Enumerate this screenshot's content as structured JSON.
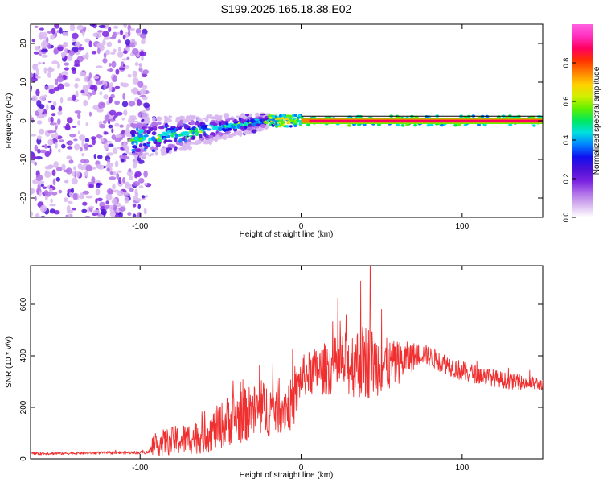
{
  "title": "S199.2025.165.18.38.E02",
  "chart_data": [
    {
      "type": "heatmap",
      "xlabel": "Height of straight line (km)",
      "ylabel": "Frequency (Hz)",
      "xlim": [
        -168,
        150
      ],
      "ylim": [
        -25,
        25
      ],
      "xticks": [
        -100,
        0,
        100
      ],
      "yticks": [
        -20,
        -10,
        0,
        10,
        20
      ],
      "colorbar": {
        "label": "Normalized spectral amplitude",
        "range": [
          0,
          1
        ],
        "ticks": [
          "0.0",
          "0.2",
          "0.4",
          "0.6",
          "0.8"
        ],
        "colors": [
          "#ffffff",
          "#d8b8f0",
          "#b070e8",
          "#7b22e0",
          "#4a10d8",
          "#1010f0",
          "#0080ff",
          "#00e0e0",
          "#00e860",
          "#60f000",
          "#d0f000",
          "#ffd000",
          "#ff8000",
          "#ff3000",
          "#ff0060",
          "#ff30c0",
          "#ff60e0"
        ]
      },
      "regions": [
        {
          "name": "noise",
          "x": [
            -168,
            -95
          ],
          "y_spread": 25,
          "amplitude": 0.12
        },
        {
          "name": "scattered",
          "x": [
            -105,
            -20
          ],
          "center_y": [
            -5,
            0
          ],
          "y_spread": 6,
          "amplitude": 0.25
        },
        {
          "name": "stable-line",
          "x": [
            0,
            150
          ],
          "center_y": 0,
          "y_spread": 1,
          "amplitude": 0.9
        }
      ]
    },
    {
      "type": "line",
      "xlabel": "Height of straight line (km)",
      "ylabel": "SNR (10 * v/v)",
      "xlim": [
        -168,
        150
      ],
      "ylim": [
        0,
        750
      ],
      "xticks": [
        -100,
        0,
        100
      ],
      "yticks": [
        0,
        200,
        400,
        600
      ],
      "color": "#f03030",
      "envelope": [
        {
          "x": -168,
          "base": 20,
          "spread": 10
        },
        {
          "x": -95,
          "base": 25,
          "spread": 12
        },
        {
          "x": -88,
          "base": 60,
          "spread": 100
        },
        {
          "x": -60,
          "base": 90,
          "spread": 140
        },
        {
          "x": -45,
          "base": 150,
          "spread": 200
        },
        {
          "x": -25,
          "base": 190,
          "spread": 220
        },
        {
          "x": -5,
          "base": 210,
          "spread": 200
        },
        {
          "x": 0,
          "base": 320,
          "spread": 160
        },
        {
          "x": 20,
          "base": 360,
          "spread": 220
        },
        {
          "x": 40,
          "base": 380,
          "spread": 300
        },
        {
          "x": 55,
          "base": 360,
          "spread": 200
        },
        {
          "x": 75,
          "base": 410,
          "spread": 80
        },
        {
          "x": 100,
          "base": 340,
          "spread": 80
        },
        {
          "x": 130,
          "base": 300,
          "spread": 60
        },
        {
          "x": 150,
          "base": 290,
          "spread": 50
        }
      ],
      "peaks": [
        {
          "x": 37,
          "y": 690
        },
        {
          "x": 43,
          "y": 750
        },
        {
          "x": 28,
          "y": 560
        },
        {
          "x": 50,
          "y": 580
        }
      ]
    }
  ]
}
